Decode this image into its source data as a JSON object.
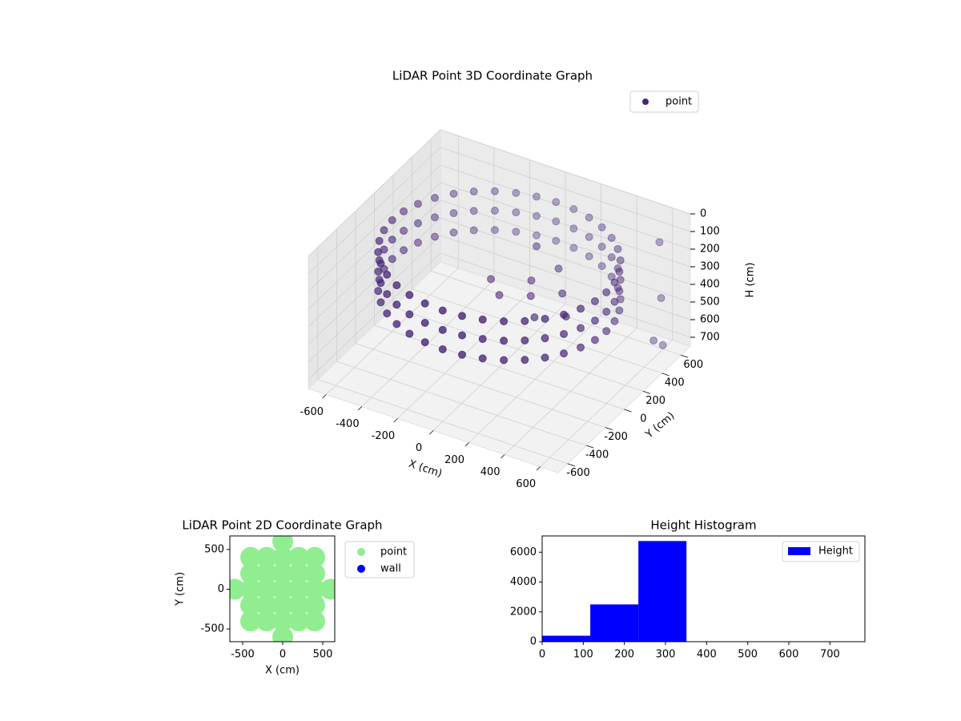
{
  "chart_data": [
    {
      "type": "scatter3d",
      "title": "LiDAR Point 3D Coordinate Graph",
      "xlabel": "X (cm)",
      "ylabel": "Y (cm)",
      "zlabel": "H (cm)",
      "xlim": [
        -700,
        700
      ],
      "ylim": [
        -700,
        700
      ],
      "zlim": [
        0,
        750
      ],
      "zinverted": true,
      "xticks": [
        -600,
        -400,
        -200,
        0,
        200,
        400,
        600
      ],
      "yticks": [
        -600,
        -400,
        -200,
        0,
        200,
        400,
        600
      ],
      "zticks": [
        0,
        100,
        200,
        300,
        400,
        500,
        600,
        700
      ],
      "grid": true,
      "legend": "upper right",
      "series": [
        {
          "name": "point",
          "color": "#482878",
          "x": [
            600,
            591,
            564,
            520,
            460,
            386,
            300,
            205,
            104,
            0,
            -104,
            -205,
            -300,
            -386,
            -460,
            -520,
            -564,
            -591,
            -600,
            -591,
            -564,
            -520,
            -460,
            -386,
            -300,
            -205,
            -104,
            0,
            104,
            205,
            300,
            386,
            460,
            520,
            564,
            591,
            600,
            591,
            564,
            520,
            460,
            386,
            300,
            205,
            104,
            0,
            -104,
            -205,
            -300,
            -386,
            -460,
            -520,
            -564,
            -591,
            -600,
            -591,
            -564,
            -520,
            -460,
            -386,
            -300,
            -205,
            -104,
            0,
            104,
            205,
            300,
            386,
            460,
            520,
            564,
            591,
            600,
            591,
            564,
            520,
            460,
            386,
            300,
            205,
            104,
            0,
            -104,
            -205,
            -300,
            -386,
            -460,
            -520,
            -564,
            -591,
            -600,
            -591,
            -564,
            -520,
            -460,
            -386,
            -300,
            -205,
            -104,
            0,
            104,
            205,
            300,
            386,
            460,
            520,
            564,
            591,
            100,
            150,
            0,
            250,
            -100,
            200,
            300,
            50,
            400,
            600,
            620,
            580,
            600
          ],
          "y": [
            0,
            104,
            205,
            300,
            386,
            460,
            520,
            564,
            591,
            600,
            591,
            564,
            520,
            460,
            386,
            300,
            205,
            104,
            0,
            -104,
            -205,
            -300,
            -386,
            -460,
            -520,
            -564,
            -591,
            -600,
            -591,
            -564,
            -520,
            -460,
            -386,
            -300,
            -205,
            -104,
            0,
            104,
            205,
            300,
            386,
            460,
            520,
            564,
            591,
            600,
            591,
            564,
            520,
            460,
            386,
            300,
            205,
            104,
            0,
            -104,
            -205,
            -300,
            -386,
            -460,
            -520,
            -564,
            -591,
            -600,
            -591,
            -564,
            -520,
            -460,
            -386,
            -300,
            -205,
            -104,
            0,
            104,
            205,
            300,
            386,
            460,
            520,
            564,
            591,
            600,
            591,
            564,
            520,
            460,
            386,
            300,
            205,
            104,
            0,
            -104,
            -205,
            -300,
            -386,
            -460,
            -520,
            -564,
            -591,
            -600,
            -591,
            -564,
            -520,
            -460,
            -386,
            -300,
            -205,
            -104,
            150,
            50,
            0,
            -100,
            100,
            250,
            100,
            300,
            -50,
            500,
            560,
            600,
            580
          ],
          "z": [
            120,
            120,
            120,
            120,
            120,
            120,
            120,
            120,
            120,
            120,
            120,
            120,
            120,
            120,
            120,
            120,
            120,
            120,
            120,
            120,
            120,
            120,
            120,
            120,
            120,
            120,
            120,
            120,
            120,
            120,
            120,
            120,
            120,
            120,
            120,
            120,
            230,
            230,
            230,
            230,
            230,
            230,
            230,
            230,
            230,
            230,
            230,
            230,
            230,
            230,
            230,
            230,
            230,
            230,
            230,
            230,
            230,
            230,
            230,
            230,
            230,
            230,
            230,
            230,
            230,
            230,
            230,
            230,
            230,
            230,
            230,
            230,
            340,
            340,
            340,
            340,
            340,
            340,
            340,
            340,
            340,
            340,
            340,
            340,
            340,
            340,
            340,
            340,
            340,
            340,
            340,
            340,
            340,
            340,
            340,
            340,
            340,
            340,
            340,
            340,
            340,
            340,
            340,
            340,
            340,
            340,
            340,
            340,
            300,
            320,
            340,
            330,
            335,
            250,
            280,
            200,
            300,
            650,
            700,
            150,
            450
          ]
        }
      ]
    },
    {
      "type": "scatter",
      "title": "LiDAR Point 2D Coordinate Graph",
      "xlabel": "X (cm)",
      "ylabel": "Y (cm)",
      "xlim": [
        -660,
        650
      ],
      "ylim": [
        -660,
        670
      ],
      "xticks": [
        -500,
        0,
        500
      ],
      "yticks": [
        -500,
        0,
        500
      ],
      "legend": "outside right",
      "series": [
        {
          "name": "point",
          "color": "#90ee90",
          "x": [
            0,
            -400,
            -200,
            0,
            200,
            400,
            -400,
            -200,
            0,
            200,
            400,
            -600,
            -400,
            -200,
            0,
            200,
            400,
            600,
            -400,
            -200,
            0,
            200,
            400,
            -400,
            -200,
            0,
            200,
            400,
            0
          ],
          "y": [
            600,
            400,
            400,
            400,
            400,
            400,
            200,
            200,
            200,
            200,
            200,
            0,
            0,
            0,
            0,
            0,
            0,
            0,
            -200,
            -200,
            -200,
            -200,
            -200,
            -400,
            -400,
            -400,
            -400,
            -400,
            -600
          ]
        },
        {
          "name": "wall",
          "color": "#0000ff",
          "x": [],
          "y": []
        }
      ]
    },
    {
      "type": "histogram",
      "title": "Height Histogram",
      "bins": [
        0,
        117,
        234,
        351,
        468,
        585,
        702
      ],
      "xlim": [
        0,
        785
      ],
      "ylim": [
        0,
        7090
      ],
      "xticks": [
        0,
        100,
        200,
        300,
        400,
        500,
        600,
        700
      ],
      "yticks": [
        0,
        2000,
        4000,
        6000
      ],
      "legend": "upper right",
      "series": [
        {
          "name": "Height",
          "color": "#0000ff",
          "values": [
            400,
            2500,
            6750,
            0,
            0,
            0
          ]
        }
      ]
    }
  ]
}
